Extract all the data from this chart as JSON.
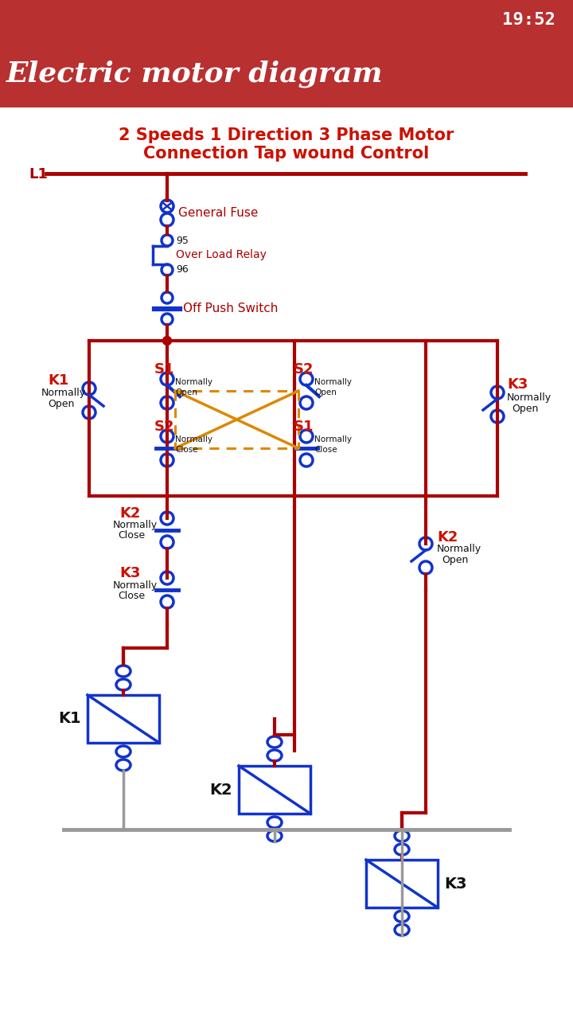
{
  "app_title": "Electric motor diagram",
  "diagram_title_1": "2 Speeds 1 Direction 3 Phase Motor",
  "diagram_title_2": "Connection Tap wound Control",
  "status_bg": "#b83030",
  "header_bg": "#b83030",
  "white": "#ffffff",
  "red": "#cc1100",
  "dark_red": "#aa0000",
  "blue": "#1133cc",
  "orange": "#dd8800",
  "black": "#111111",
  "gray": "#999999",
  "time_text": "19:52",
  "L1_label": "L1",
  "fuse_label": "General Fuse",
  "relay_label": "Over Load Relay",
  "push_label": "Off Push Switch",
  "relay_95": "95",
  "relay_96": "96"
}
